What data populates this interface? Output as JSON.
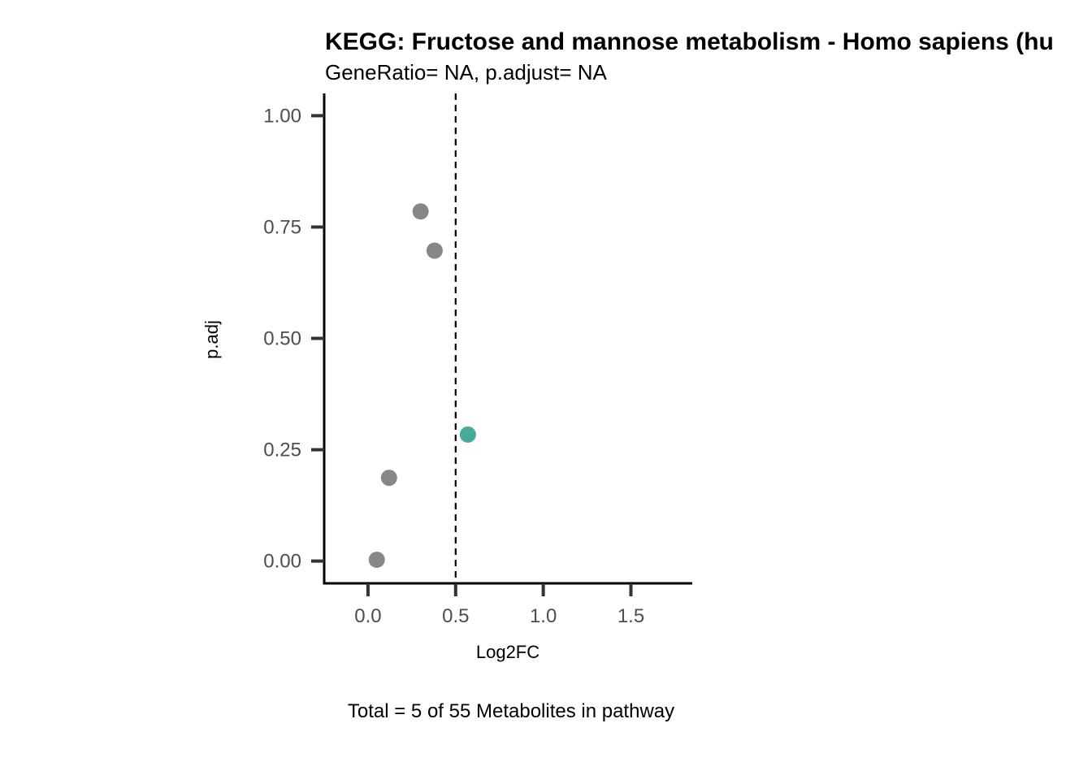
{
  "chart_data": {
    "type": "scatter",
    "title": "KEGG: Fructose and mannose metabolism - Homo sapiens (hu",
    "subtitle": "GeneRatio= NA, p.adjust= NA",
    "xlabel": "Log2FC",
    "ylabel": "p.adj",
    "caption": "Total = 5 of 55 Metabolites in pathway",
    "xlim": [
      -0.25,
      1.85
    ],
    "ylim": [
      -0.05,
      1.05
    ],
    "x_ticks": [
      0.0,
      0.5,
      1.0,
      1.5
    ],
    "x_tick_labels": [
      "0.0",
      "0.5",
      "1.0",
      "1.5"
    ],
    "y_ticks": [
      0.0,
      0.25,
      0.5,
      0.75,
      1.0
    ],
    "y_tick_labels": [
      "0.00",
      "0.25",
      "0.50",
      "0.75",
      "1.00"
    ],
    "threshold_x": 0.5,
    "grid": false,
    "colors": {
      "default": "#878787",
      "highlight": "#45ab98",
      "axis": "#000000",
      "tick": "#333333"
    },
    "points": [
      {
        "x": 0.3,
        "y": 0.785,
        "highlight": false
      },
      {
        "x": 0.38,
        "y": 0.697,
        "highlight": false
      },
      {
        "x": 0.57,
        "y": 0.284,
        "highlight": true
      },
      {
        "x": 0.12,
        "y": 0.187,
        "highlight": false
      },
      {
        "x": 0.05,
        "y": 0.003,
        "highlight": false
      }
    ]
  }
}
